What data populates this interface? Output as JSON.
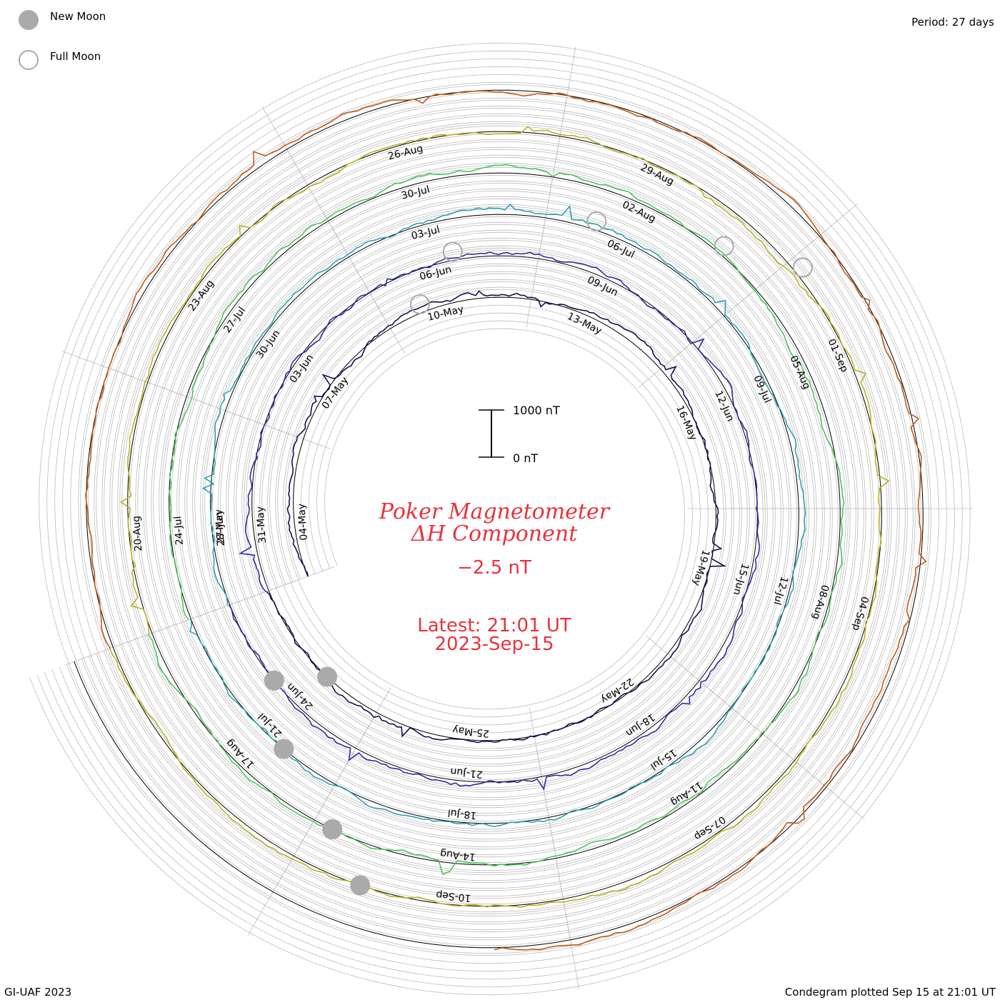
{
  "header": {
    "period": "Period: 27 days"
  },
  "legend": [
    {
      "label": "New Moon",
      "symbol": "new-moon-icon"
    },
    {
      "label": "Full Moon",
      "symbol": "full-moon-icon"
    }
  ],
  "footer": {
    "left": "GI-UAF 2023",
    "right": "Condegram plotted Sep 15 at 21:01 UT"
  },
  "center": {
    "title1": "Poker Magnetometer",
    "title2": "ΔH Component",
    "value": "−2.5 nT",
    "latest": "Latest: 21:01 UT",
    "date": "2023-Sep-15",
    "scale_top": "1000 nT",
    "scale_bottom": "0 nT"
  },
  "colors": {
    "title": "#e8333c",
    "grid": "#bbbbbb",
    "moon": "#aaaaaa"
  },
  "chart_data": {
    "type": "line",
    "style": "condegram spiral, 27-day period, one ring per rotation",
    "scale_nT": [
      0,
      1000
    ],
    "series": [
      {
        "color": "#13104f",
        "date_labels": [
          "04-May",
          "07-May",
          "10-May",
          "13-May",
          "16-May",
          "19-May",
          "22-May",
          "25-May"
        ]
      },
      {
        "color": "#2c2ca0",
        "date_labels": [
          "31-May",
          "03-Jun",
          "06-Jun",
          "09-Jun",
          "12-Jun",
          "15-Jun",
          "18-Jun",
          "21-Jun",
          "24-Jun",
          "28-May"
        ]
      },
      {
        "color": "#2e9fb0",
        "date_labels": [
          "27-Jun",
          "30-Jun",
          "03-Jul",
          "06-Jul",
          "09-Jul",
          "12-Jul",
          "15-Jul",
          "18-Jul",
          "21-Jul"
        ]
      },
      {
        "color": "#4ec25a",
        "date_labels": [
          "24-Jul",
          "27-Jul",
          "30-Jul",
          "02-Aug",
          "05-Aug",
          "08-Aug",
          "11-Aug",
          "14-Aug",
          "17-Aug"
        ]
      },
      {
        "color": "#b8b01e",
        "date_labels": [
          "20-Aug",
          "23-Aug",
          "26-Aug",
          "29-Aug",
          "01-Sep",
          "04-Sep",
          "07-Sep",
          "10-Sep"
        ]
      },
      {
        "color": "#c25a14",
        "date_labels": []
      }
    ],
    "moons": {
      "new": [
        {
          "date": "19-May"
        },
        {
          "date": "18-Jun"
        },
        {
          "date": "17-Jul"
        },
        {
          "date": "16-Aug"
        },
        {
          "date": "15-Sep"
        }
      ],
      "full": [
        {
          "date": "04-May"
        },
        {
          "date": "03-Jun"
        },
        {
          "date": "03-Jul"
        },
        {
          "date": "01-Aug"
        },
        {
          "date": "31-Aug"
        }
      ]
    }
  }
}
